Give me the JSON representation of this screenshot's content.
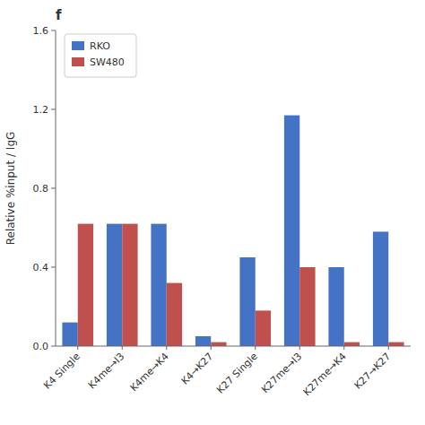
{
  "chart_data": {
    "type": "bar",
    "title": "f",
    "categories": [
      "K4 Single",
      "K4me→I3",
      "K4me→K4",
      "K4→K27",
      "K27 Single",
      "K27me→I3",
      "K27me→K4",
      "K27→K27"
    ],
    "series": [
      {
        "name": "RKO",
        "color": "#4472C4",
        "values": [
          0.12,
          0.62,
          0.62,
          0.05,
          0.45,
          1.17,
          0.4,
          0.58
        ]
      },
      {
        "name": "SW480",
        "color": "#C0504D",
        "values": [
          0.62,
          0.62,
          0.32,
          0.02,
          0.18,
          0.4,
          0.02,
          0.02
        ]
      }
    ],
    "y_label": "Relative %input / IgG",
    "ylim": [
      0,
      1.6
    ],
    "yticks": [
      {
        "value": 0,
        "label": "0.0"
      },
      0.4,
      0.8,
      1.2,
      1.6
    ],
    "legend": "upper left"
  }
}
